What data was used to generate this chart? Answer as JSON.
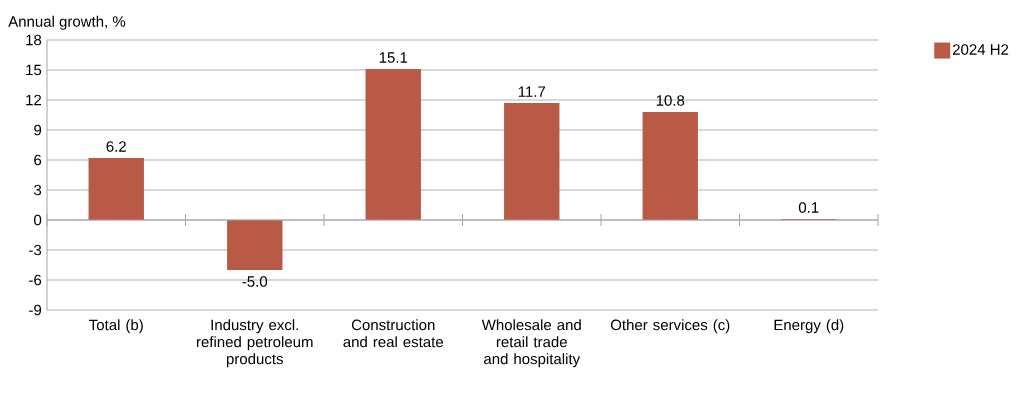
{
  "chart_data": {
    "type": "bar",
    "ylabel": "Annual growth, %",
    "categories": [
      "Total (b)",
      "Industry excl. refined petroleum products",
      "Construction and real estate",
      "Wholesale and retail trade and hospitality",
      "Other services (c)",
      "Energy (d)"
    ],
    "series": [
      {
        "name": "2024 H2",
        "color": "#b95a47",
        "values": [
          6.2,
          -5.0,
          15.1,
          11.7,
          10.8,
          0.1
        ],
        "value_labels": [
          "6.2",
          "-5.0",
          "15.1",
          "11.7",
          "10.8",
          "0.1"
        ]
      }
    ],
    "ylim": [
      -9,
      18
    ],
    "yticks": [
      -9,
      -6,
      -3,
      0,
      3,
      6,
      9,
      12,
      15,
      18
    ],
    "grid": "y",
    "legend": "top right"
  }
}
